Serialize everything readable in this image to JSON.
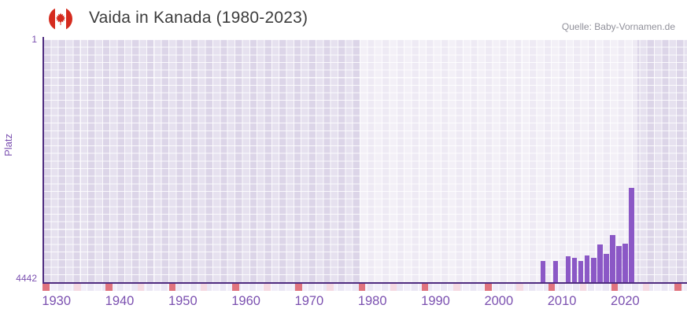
{
  "header": {
    "flag_icon": "canada-flag-icon",
    "title": "Vaida in Kanada (1980-2023)",
    "source": "Quelle: Baby-Vornamen.de"
  },
  "axes": {
    "y_title": "Platz",
    "y_top_label": "1",
    "y_bottom_label": "4442"
  },
  "chart_data": {
    "type": "bar",
    "title": "Vaida in Kanada (1980-2023)",
    "xlabel": "",
    "ylabel": "Platz",
    "x": [
      2007,
      2009,
      2011,
      2012,
      2013,
      2014,
      2015,
      2016,
      2017,
      2018,
      2019,
      2020,
      2021
    ],
    "values": [
      4060,
      4060,
      3970,
      3995,
      4055,
      3955,
      3990,
      3750,
      3925,
      3580,
      3785,
      3740,
      2715
    ],
    "series_name": "Platz",
    "ylim": [
      1,
      4442
    ],
    "y_axis_inverted": true,
    "x_domain": [
      1928,
      2030
    ],
    "x_ticks": [
      1930,
      1940,
      1950,
      1960,
      1970,
      1980,
      1990,
      2000,
      2010,
      2020
    ],
    "highlight_band_years": [
      1978,
      2022
    ],
    "bottom_markers": {
      "red_years": [
        1928,
        1938,
        1948,
        1958,
        1968,
        1978,
        1988,
        1998,
        2008,
        2018,
        2028
      ],
      "pink_years": [
        1933,
        1943,
        1953,
        1963,
        1973,
        1983,
        1993,
        2003,
        2013,
        2023
      ]
    },
    "grid": true,
    "legend": false
  },
  "colors": {
    "bar": "#8b58c6",
    "axis_line": "#4f2c80",
    "axis_text": "#7b50b0",
    "title_text": "#3c3c3c",
    "source_text": "#90909a",
    "checker_a": "#dcd5e8",
    "checker_b": "#e6e1ef",
    "strip_a": "#eae6f4",
    "strip_b": "#f1eef9",
    "marker_red": "#e0737e",
    "marker_pink": "#f5d9e2",
    "flag_red": "#d52b1e"
  }
}
